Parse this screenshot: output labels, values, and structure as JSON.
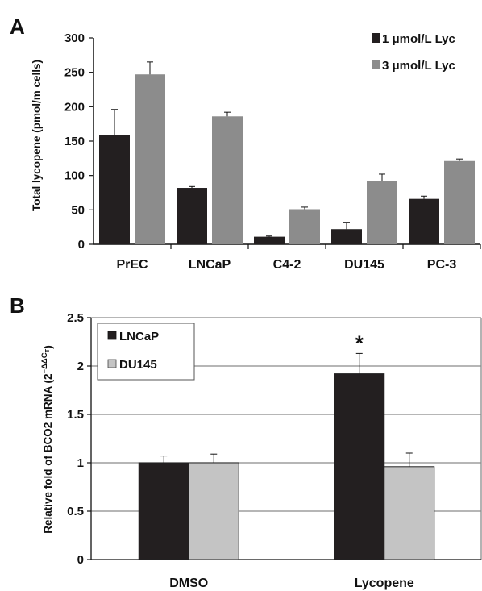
{
  "panels": [
    {
      "letter": "A",
      "ylabel": "Total lycopene (pmol/m cells)",
      "legend": [
        "1 μmol/L Lyc",
        "3 μmol/L Lyc"
      ]
    },
    {
      "letter": "B",
      "ylabel_main": "Relative fold of BCO2 mRNA (2",
      "ylabel_sup": "−ΔΔC",
      "ylabel_sub": "T",
      "ylabel_close": ")",
      "legend": [
        "LNCaP",
        "DU145"
      ],
      "annotation": "*"
    }
  ],
  "chart_data": [
    {
      "type": "bar",
      "title": "",
      "xlabel": "",
      "ylabel": "Total lycopene (pmol/m cells)",
      "ylim": [
        0,
        300
      ],
      "yticks": [
        "0",
        "50",
        "100",
        "150",
        "200",
        "250",
        "300"
      ],
      "grid": false,
      "legend_position": "top-right",
      "categories": [
        "PrEC",
        "LNCaP",
        "C4-2",
        "DU145",
        "PC-3"
      ],
      "series": [
        {
          "name": "1 μmol/L Lyc",
          "color": "#231f20",
          "values": [
            159,
            82,
            11,
            22,
            66
          ],
          "errors": [
            37,
            2,
            1,
            10,
            4
          ]
        },
        {
          "name": "3 μmol/L Lyc",
          "color": "#8c8c8c",
          "values": [
            247,
            186,
            51,
            92,
            121
          ],
          "errors": [
            18,
            6,
            3,
            10,
            3
          ]
        }
      ]
    },
    {
      "type": "bar",
      "title": "",
      "xlabel": "",
      "ylabel": "Relative fold of BCO2 mRNA (2^−ΔΔCT)",
      "ylim": [
        0,
        2.5
      ],
      "yticks": [
        "0",
        "0.5",
        "1",
        "1.5",
        "2",
        "2.5"
      ],
      "grid": true,
      "legend_position": "top-left",
      "categories": [
        "DMSO",
        "Lycopene"
      ],
      "series": [
        {
          "name": "LNCaP",
          "color": "#231f20",
          "values": [
            1.0,
            1.92
          ],
          "errors": [
            0.07,
            0.21
          ]
        },
        {
          "name": "DU145",
          "color": "#c4c4c4",
          "values": [
            1.0,
            0.96
          ],
          "errors": [
            0.09,
            0.14
          ]
        }
      ],
      "annotations": [
        {
          "text": "*",
          "category": "Lycopene",
          "series": "LNCaP"
        }
      ]
    }
  ]
}
